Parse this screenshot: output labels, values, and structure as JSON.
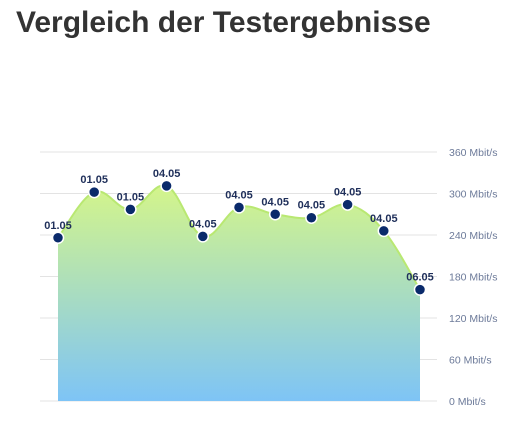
{
  "page": {
    "title": "Vergleich der Testergebnisse"
  },
  "colors": {
    "area_top": "#d4f58a",
    "area_bottom": "#7ec4f6",
    "line": "#b9e872",
    "marker_fill": "#0a2a6b",
    "marker_stroke": "#ffffff",
    "grid": "#e3e3e3",
    "tick_text": "#6c7a99",
    "label_text": "#1f2f5a",
    "title_text": "#333333"
  },
  "chart_data": {
    "type": "area",
    "title": "Vergleich der Testergebnisse",
    "xlabel": "",
    "ylabel": "",
    "y_unit": "Mbit/s",
    "ylim": [
      0,
      360
    ],
    "yticks": [
      0,
      60,
      120,
      180,
      240,
      300,
      360
    ],
    "ytick_labels": [
      "0 Mbit/s",
      "60 Mbit/s",
      "120 Mbit/s",
      "180 Mbit/s",
      "240 Mbit/s",
      "300 Mbit/s",
      "360 Mbit/s"
    ],
    "grid": true,
    "legend": "none",
    "points": [
      {
        "label": "01.05",
        "value": 236
      },
      {
        "label": "01.05",
        "value": 302
      },
      {
        "label": "01.05",
        "value": 277
      },
      {
        "label": "04.05",
        "value": 311
      },
      {
        "label": "04.05",
        "value": 238
      },
      {
        "label": "04.05",
        "value": 280
      },
      {
        "label": "04.05",
        "value": 270
      },
      {
        "label": "04.05",
        "value": 265
      },
      {
        "label": "04.05",
        "value": 284
      },
      {
        "label": "04.05",
        "value": 246
      },
      {
        "label": "06.05",
        "value": 161
      }
    ]
  }
}
